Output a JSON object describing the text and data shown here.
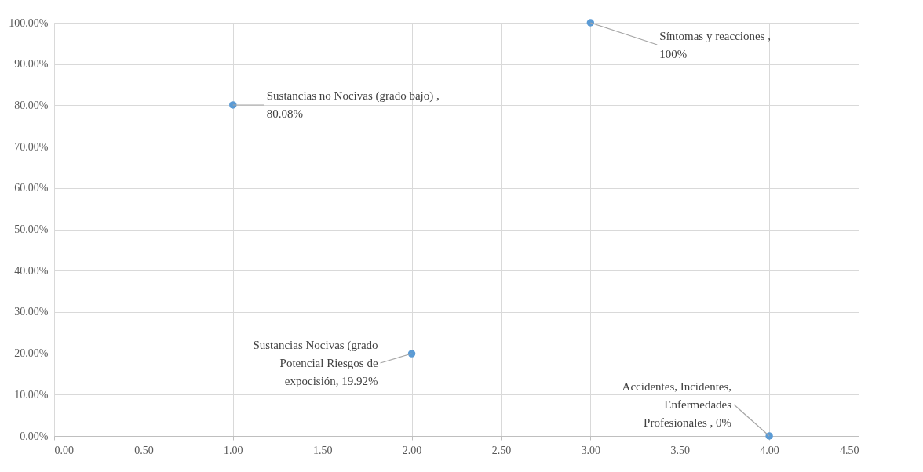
{
  "chart_data": {
    "type": "scatter",
    "x": [
      1,
      2,
      3,
      4
    ],
    "values": [
      80.08,
      19.92,
      100,
      0
    ],
    "color": "#5b9bd5",
    "marker": "circle",
    "grid": true,
    "xlim": [
      0,
      4.5
    ],
    "xticks": [
      {
        "value": 0,
        "label": "0.00"
      },
      {
        "value": 0.5,
        "label": "0.50"
      },
      {
        "value": 1,
        "label": "1.00"
      },
      {
        "value": 1.5,
        "label": "1.50"
      },
      {
        "value": 2,
        "label": "2.00"
      },
      {
        "value": 2.5,
        "label": "2.50"
      },
      {
        "value": 3,
        "label": "3.00"
      },
      {
        "value": 3.5,
        "label": "3.50"
      },
      {
        "value": 4,
        "label": "4.00"
      },
      {
        "value": 4.5,
        "label": "4.50"
      }
    ],
    "ylim": [
      0,
      100
    ],
    "yticks": [
      {
        "value": 0,
        "label": "0.00%"
      },
      {
        "value": 10,
        "label": "10.00%"
      },
      {
        "value": 20,
        "label": "20.00%"
      },
      {
        "value": 30,
        "label": "30.00%"
      },
      {
        "value": 40,
        "label": "40.00%"
      },
      {
        "value": 50,
        "label": "50.00%"
      },
      {
        "value": 60,
        "label": "60.00%"
      },
      {
        "value": 70,
        "label": "70.00%"
      },
      {
        "value": 80,
        "label": "80.00%"
      },
      {
        "value": 90,
        "label": "90.00%"
      },
      {
        "value": 100,
        "label": "100.00%"
      }
    ],
    "annotations": [
      {
        "text": "Sustancias no Nocivas (grado bajo) ,\n80.08%",
        "x": 1,
        "y": 80.08
      },
      {
        "text": "Sustancias Nocivas (grado\nPotencial Riesgos de\nexpocisión, 19.92%",
        "x": 2,
        "y": 19.92
      },
      {
        "text": "Síntomas y reacciones ,\n100%",
        "x": 3,
        "y": 100
      },
      {
        "text": "Accidentes, Incidentes,\nEnfermedades\nProfesionales , 0%",
        "x": 4,
        "y": 0
      }
    ]
  }
}
